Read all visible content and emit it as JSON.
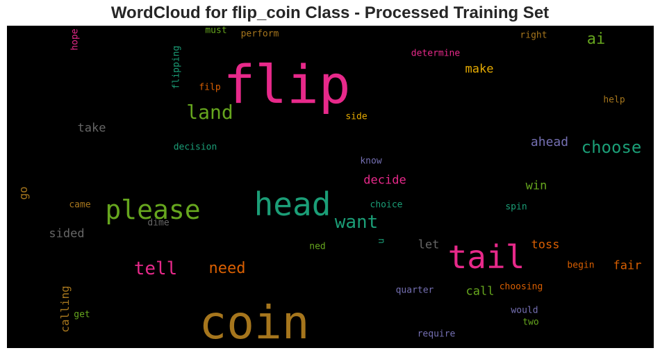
{
  "title": "WordCloud for flip_coin Class - Processed Training Set",
  "chart_data": {
    "type": "wordcloud",
    "background": "#000000",
    "words": [
      {
        "text": "flip",
        "color": "#e7298a"
      },
      {
        "text": "coin",
        "color": "#a6761d"
      },
      {
        "text": "head",
        "color": "#1b9e77"
      },
      {
        "text": "tail",
        "color": "#e7298a"
      },
      {
        "text": "please",
        "color": "#66a61e"
      },
      {
        "text": "land",
        "color": "#66a61e"
      },
      {
        "text": "tell",
        "color": "#e7298a"
      },
      {
        "text": "want",
        "color": "#1b9e77"
      },
      {
        "text": "need",
        "color": "#d95f02"
      },
      {
        "text": "choose",
        "color": "#1b9e77"
      },
      {
        "text": "ai",
        "color": "#66a61e"
      },
      {
        "text": "make",
        "color": "#e6ab02"
      },
      {
        "text": "take",
        "color": "#666666"
      },
      {
        "text": "ahead",
        "color": "#7570b3"
      },
      {
        "text": "decide",
        "color": "#e7298a"
      },
      {
        "text": "win",
        "color": "#66a61e"
      },
      {
        "text": "toss",
        "color": "#d95f02"
      },
      {
        "text": "fair",
        "color": "#d95f02"
      },
      {
        "text": "call",
        "color": "#66a61e"
      },
      {
        "text": "sided",
        "color": "#666666"
      },
      {
        "text": "let",
        "color": "#666666"
      },
      {
        "text": "calling",
        "color": "#a6761d"
      },
      {
        "text": "go",
        "color": "#a6761d"
      },
      {
        "text": "flipping",
        "color": "#1b9e77"
      },
      {
        "text": "hope",
        "color": "#e7298a"
      },
      {
        "text": "must",
        "color": "#66a61e"
      },
      {
        "text": "perform",
        "color": "#a6761d"
      },
      {
        "text": "determine",
        "color": "#e7298a"
      },
      {
        "text": "right",
        "color": "#a6761d"
      },
      {
        "text": "filp",
        "color": "#d95f02"
      },
      {
        "text": "help",
        "color": "#a6761d"
      },
      {
        "text": "side",
        "color": "#e6ab02"
      },
      {
        "text": "decision",
        "color": "#1b9e77"
      },
      {
        "text": "know",
        "color": "#7570b3"
      },
      {
        "text": "came",
        "color": "#a6761d"
      },
      {
        "text": "dime",
        "color": "#666666"
      },
      {
        "text": "choice",
        "color": "#1b9e77"
      },
      {
        "text": "spin",
        "color": "#1b9e77"
      },
      {
        "text": "ned",
        "color": "#66a61e"
      },
      {
        "text": "u",
        "color": "#1b9e77"
      },
      {
        "text": "begin",
        "color": "#d95f02"
      },
      {
        "text": "quarter",
        "color": "#7570b3"
      },
      {
        "text": "choosing",
        "color": "#d95f02"
      },
      {
        "text": "would",
        "color": "#7570b3"
      },
      {
        "text": "two",
        "color": "#66a61e"
      },
      {
        "text": "get",
        "color": "#66a61e"
      },
      {
        "text": "require",
        "color": "#7570b3"
      }
    ]
  }
}
